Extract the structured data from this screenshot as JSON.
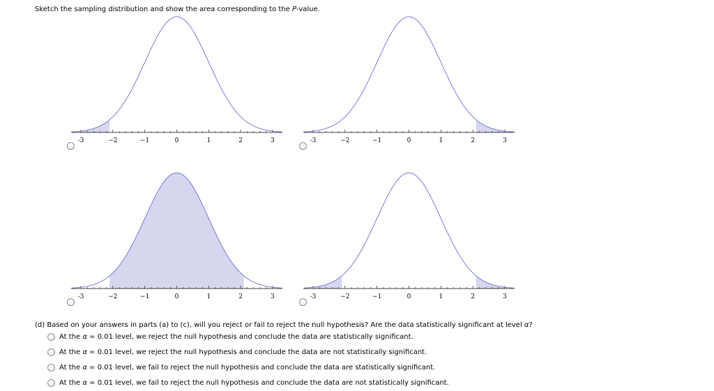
{
  "prompt": {
    "before": "Sketch the sampling distribution and show the area corresponding to the ",
    "italic": "P",
    "after": "-value."
  },
  "chart_data": [
    {
      "type": "area",
      "distribution": "standard normal",
      "xlim": [
        -3,
        3
      ],
      "x_ticks": [
        -3,
        -2,
        -1,
        0,
        1,
        2,
        3
      ],
      "tick_labels": [
        "-3",
        "−2",
        "−1",
        "0",
        "1",
        "2",
        "3"
      ],
      "shaded_regions": [
        [
          -3.0,
          -2.1
        ]
      ],
      "shade_color": "#d6d6ee",
      "curve_color": "#6d6dd2"
    },
    {
      "type": "area",
      "distribution": "standard normal",
      "xlim": [
        -3,
        3
      ],
      "x_ticks": [
        -3,
        -2,
        -1,
        0,
        1,
        2,
        3
      ],
      "tick_labels": [
        "-3",
        "−2",
        "−1",
        "0",
        "1",
        "2",
        "3"
      ],
      "shaded_regions": [
        [
          2.1,
          3.0
        ]
      ],
      "shade_color": "#d6d6ee",
      "curve_color": "#6d6dd2"
    },
    {
      "type": "area",
      "distribution": "standard normal",
      "xlim": [
        -3,
        3
      ],
      "x_ticks": [
        -3,
        -2,
        -1,
        0,
        1,
        2,
        3
      ],
      "tick_labels": [
        "-3",
        "−2",
        "−1",
        "0",
        "1",
        "2",
        "3"
      ],
      "shaded_regions": [
        [
          -2.1,
          2.1
        ]
      ],
      "shade_color": "#d6d6ee",
      "curve_color": "#6d6dd2"
    },
    {
      "type": "area",
      "distribution": "standard normal",
      "xlim": [
        -3,
        3
      ],
      "x_ticks": [
        -3,
        -2,
        -1,
        0,
        1,
        2,
        3
      ],
      "tick_labels": [
        "-3",
        "−2",
        "−1",
        "0",
        "1",
        "2",
        "3"
      ],
      "shaded_regions": [
        [
          -3.0,
          -2.1
        ],
        [
          2.1,
          3.0
        ]
      ],
      "shade_color": "#d6d6ee",
      "curve_color": "#6d6dd2"
    }
  ],
  "question": {
    "text_before": "(d) Based on your answers in parts (a) to (c), will you reject or fail to reject the null hypothesis? Are the data statistically significant at level ",
    "alpha_symbol": "α",
    "text_after": "?"
  },
  "options": [
    {
      "pre": "At the ",
      "alpha": "α",
      "post": " = 0.01 level, we reject the null hypothesis and conclude the data are statistically significant."
    },
    {
      "pre": "At the ",
      "alpha": "α",
      "post": " = 0.01 level, we reject the null hypothesis and conclude the data are not statistically significant."
    },
    {
      "pre": "At the ",
      "alpha": "α",
      "post": " = 0.01 level, we fail to reject the null hypothesis and conclude the data are statistically significant."
    },
    {
      "pre": "At the ",
      "alpha": "α",
      "post": " = 0.01 level, we fail to reject the null hypothesis and conclude the data are not statistically significant."
    }
  ]
}
